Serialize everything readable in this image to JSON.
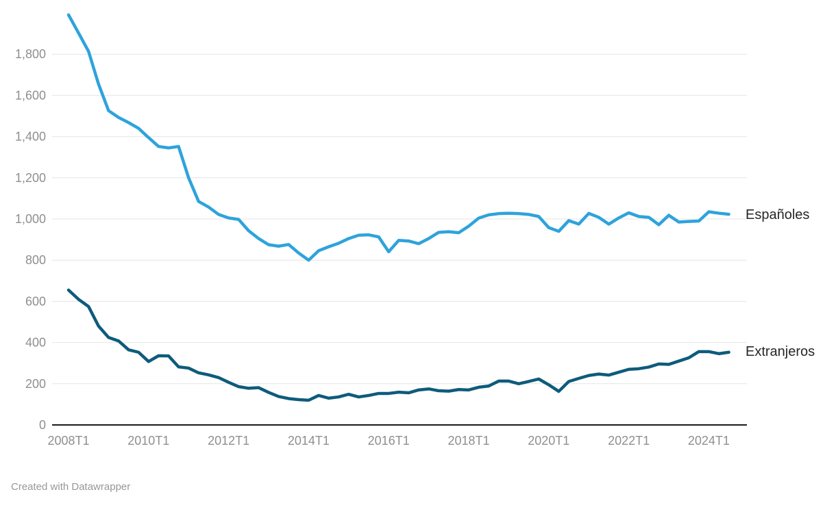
{
  "footer": {
    "text": "Created with Datawrapper"
  },
  "chart_data": {
    "type": "line",
    "title": "",
    "xlabel": "",
    "ylabel": "",
    "ylim": [
      0,
      2000
    ],
    "ytick_step": 200,
    "y_ticks": [
      0,
      200,
      400,
      600,
      800,
      1000,
      1200,
      1400,
      1600,
      1800
    ],
    "grid": "horizontal",
    "legend_position": "right-of-line-end",
    "x_axis_tick_labels": [
      "2008T1",
      "2010T1",
      "2012T1",
      "2014T1",
      "2016T1",
      "2018T1",
      "2020T1",
      "2022T1",
      "2024T1"
    ],
    "x": [
      "2008T1",
      "2008T2",
      "2008T3",
      "2008T4",
      "2009T1",
      "2009T2",
      "2009T3",
      "2009T4",
      "2010T1",
      "2010T2",
      "2010T3",
      "2010T4",
      "2011T1",
      "2011T2",
      "2011T3",
      "2011T4",
      "2012T1",
      "2012T2",
      "2012T3",
      "2012T4",
      "2013T1",
      "2013T2",
      "2013T3",
      "2013T4",
      "2014T1",
      "2014T2",
      "2014T3",
      "2014T4",
      "2015T1",
      "2015T2",
      "2015T3",
      "2015T4",
      "2016T1",
      "2016T2",
      "2016T3",
      "2016T4",
      "2017T1",
      "2017T2",
      "2017T3",
      "2017T4",
      "2018T1",
      "2018T2",
      "2018T3",
      "2018T4",
      "2019T1",
      "2019T2",
      "2019T3",
      "2019T4",
      "2020T1",
      "2020T2",
      "2020T3",
      "2020T4",
      "2021T1",
      "2021T2",
      "2021T3",
      "2021T4",
      "2022T1",
      "2022T2",
      "2022T3",
      "2022T4",
      "2023T1",
      "2023T2",
      "2023T3",
      "2023T4",
      "2024T1",
      "2024T2",
      "2024T3"
    ],
    "series": [
      {
        "name": "Españoles",
        "color": "#2ea3db",
        "values": [
          1991,
          1903,
          1814,
          1655,
          1526,
          1493,
          1468,
          1440,
          1395,
          1352,
          1345,
          1352,
          1200,
          1085,
          1058,
          1022,
          1005,
          998,
          943,
          905,
          875,
          868,
          876,
          835,
          800,
          846,
          865,
          882,
          905,
          921,
          923,
          913,
          841,
          896,
          893,
          880,
          905,
          935,
          938,
          933,
          965,
          1004,
          1020,
          1026,
          1028,
          1026,
          1022,
          1012,
          958,
          940,
          992,
          975,
          1027,
          1008,
          975,
          1005,
          1030,
          1012,
          1008,
          972,
          1018,
          985,
          988,
          990,
          1035,
          1028,
          1023
        ]
      },
      {
        "name": "Extranjeros",
        "color": "#0e5b7c",
        "values": [
          655,
          610,
          575,
          480,
          425,
          408,
          365,
          353,
          308,
          336,
          335,
          282,
          276,
          253,
          243,
          230,
          207,
          186,
          178,
          181,
          158,
          138,
          128,
          123,
          120,
          143,
          130,
          136,
          149,
          136,
          143,
          153,
          153,
          159,
          156,
          170,
          175,
          166,
          164,
          172,
          170,
          183,
          189,
          213,
          213,
          200,
          211,
          223,
          195,
          163,
          211,
          226,
          240,
          247,
          242,
          256,
          270,
          273,
          281,
          296,
          294,
          310,
          326,
          356,
          356,
          346,
          353
        ]
      }
    ],
    "style": {
      "grid_color": "#e4e4e4",
      "axis_line_color": "#1a1a1a",
      "tick_label_color": "#8f8f8f",
      "line_width": 4.5
    }
  }
}
